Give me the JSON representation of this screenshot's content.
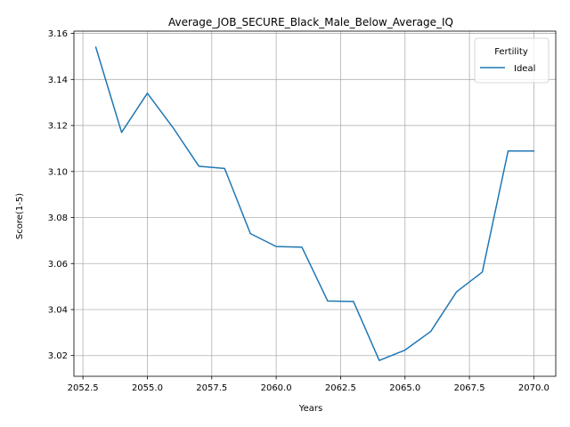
{
  "chart_data": {
    "type": "line",
    "title": "Average_JOB_SECURE_Black_Male_Below_Average_IQ",
    "xlabel": "Years",
    "ylabel": "Score(1-5)",
    "xlim": [
      2052.15,
      2070.85
    ],
    "ylim": [
      3.011,
      3.161
    ],
    "xticks": [
      2052.5,
      2055.0,
      2057.5,
      2060.0,
      2062.5,
      2065.0,
      2067.5,
      2070.0
    ],
    "xtick_labels": [
      "2052.5",
      "2055.0",
      "2057.5",
      "2060.0",
      "2062.5",
      "2065.0",
      "2067.5",
      "2070.0"
    ],
    "yticks": [
      3.02,
      3.04,
      3.06,
      3.08,
      3.1,
      3.12,
      3.14,
      3.16
    ],
    "ytick_labels": [
      "3.02",
      "3.04",
      "3.06",
      "3.08",
      "3.10",
      "3.12",
      "3.14",
      "3.16"
    ],
    "grid": true,
    "legend": {
      "title": "Fertility",
      "placement": "top-right"
    },
    "series": [
      {
        "name": "Ideal",
        "color": "#1f77b4",
        "x": [
          2053,
          2054,
          2055,
          2056,
          2057,
          2058,
          2059,
          2060,
          2061,
          2062,
          2063,
          2064,
          2065,
          2066,
          2067,
          2068,
          2069,
          2070
        ],
        "y": [
          3.154,
          3.117,
          3.134,
          3.119,
          3.1023,
          3.1013,
          3.073,
          3.0674,
          3.0671,
          3.0437,
          3.0435,
          3.0179,
          3.0224,
          3.0305,
          3.0477,
          3.0563,
          3.1089,
          3.1089
        ]
      }
    ]
  }
}
